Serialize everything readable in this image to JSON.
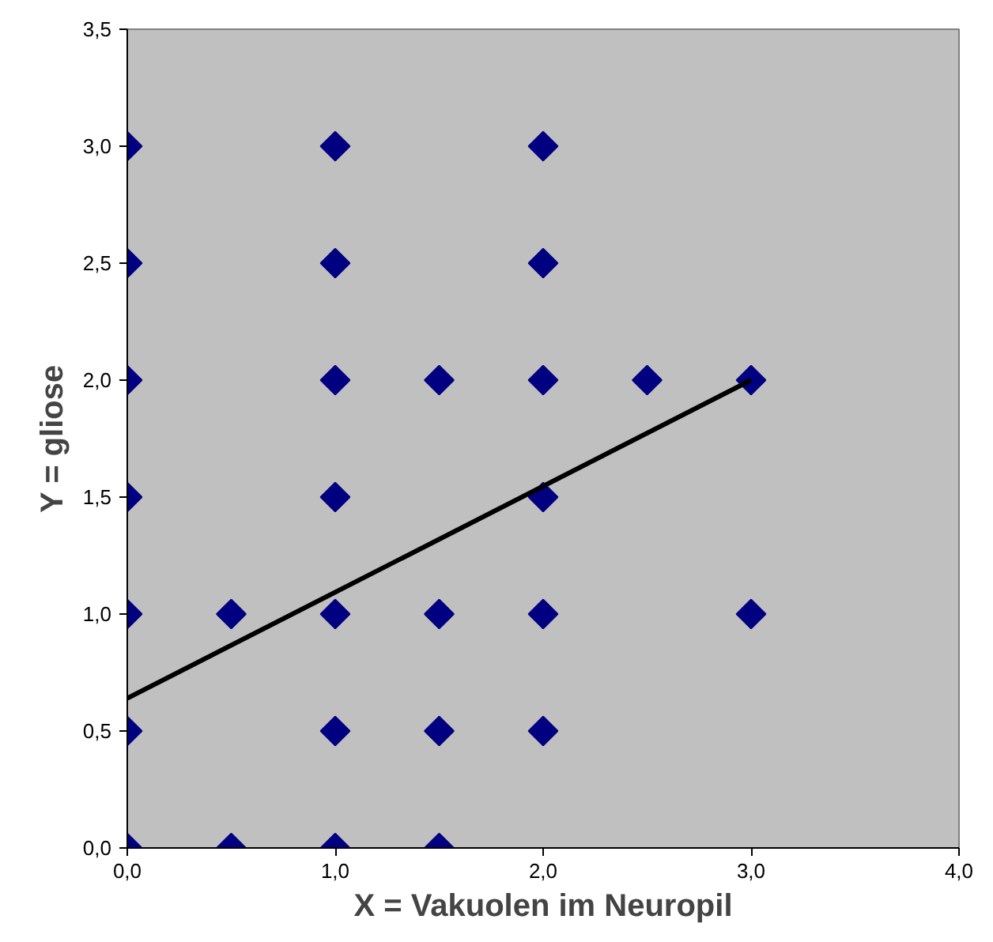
{
  "chart_data": {
    "type": "scatter",
    "xlabel": "X = Vakuolen im Neuropil",
    "ylabel": "Y = gliose",
    "marker": "diamond",
    "grid": false,
    "xlim": [
      0,
      4
    ],
    "ylim": [
      0,
      3.5
    ],
    "xticks": [
      {
        "value": 0,
        "label": "0,0"
      },
      {
        "value": 1,
        "label": "1,0"
      },
      {
        "value": 2,
        "label": "2,0"
      },
      {
        "value": 3,
        "label": "3,0"
      },
      {
        "value": 4,
        "label": "4,0"
      }
    ],
    "yticks": [
      {
        "value": 0,
        "label": "0,0"
      },
      {
        "value": 0.5,
        "label": "0,5"
      },
      {
        "value": 1,
        "label": "1,0"
      },
      {
        "value": 1.5,
        "label": "1,5"
      },
      {
        "value": 2,
        "label": "2,0"
      },
      {
        "value": 2.5,
        "label": "2,5"
      },
      {
        "value": 3,
        "label": "3,0"
      },
      {
        "value": 3.5,
        "label": "3,5"
      }
    ],
    "series": [
      {
        "color": "#000080",
        "x": [
          0,
          0,
          0,
          0,
          0,
          0,
          0,
          0.5,
          0.5,
          1,
          1,
          1,
          1,
          1,
          1,
          1,
          1.5,
          1.5,
          1.5,
          1.5,
          2,
          2,
          2,
          2,
          2,
          2,
          2.5,
          3,
          3
        ],
        "values": [
          0,
          0.5,
          1,
          1.5,
          2,
          2.5,
          3,
          0,
          1,
          0,
          0.5,
          1,
          1.5,
          2,
          2.5,
          3,
          0,
          0.5,
          1,
          2,
          0.5,
          1,
          1.5,
          2,
          2.5,
          3,
          2,
          1,
          2
        ]
      },
      {
        "type": "line",
        "marker": "none",
        "color": "#000000",
        "x": [
          0,
          3
        ],
        "values": [
          0.64,
          2.0
        ]
      }
    ]
  }
}
